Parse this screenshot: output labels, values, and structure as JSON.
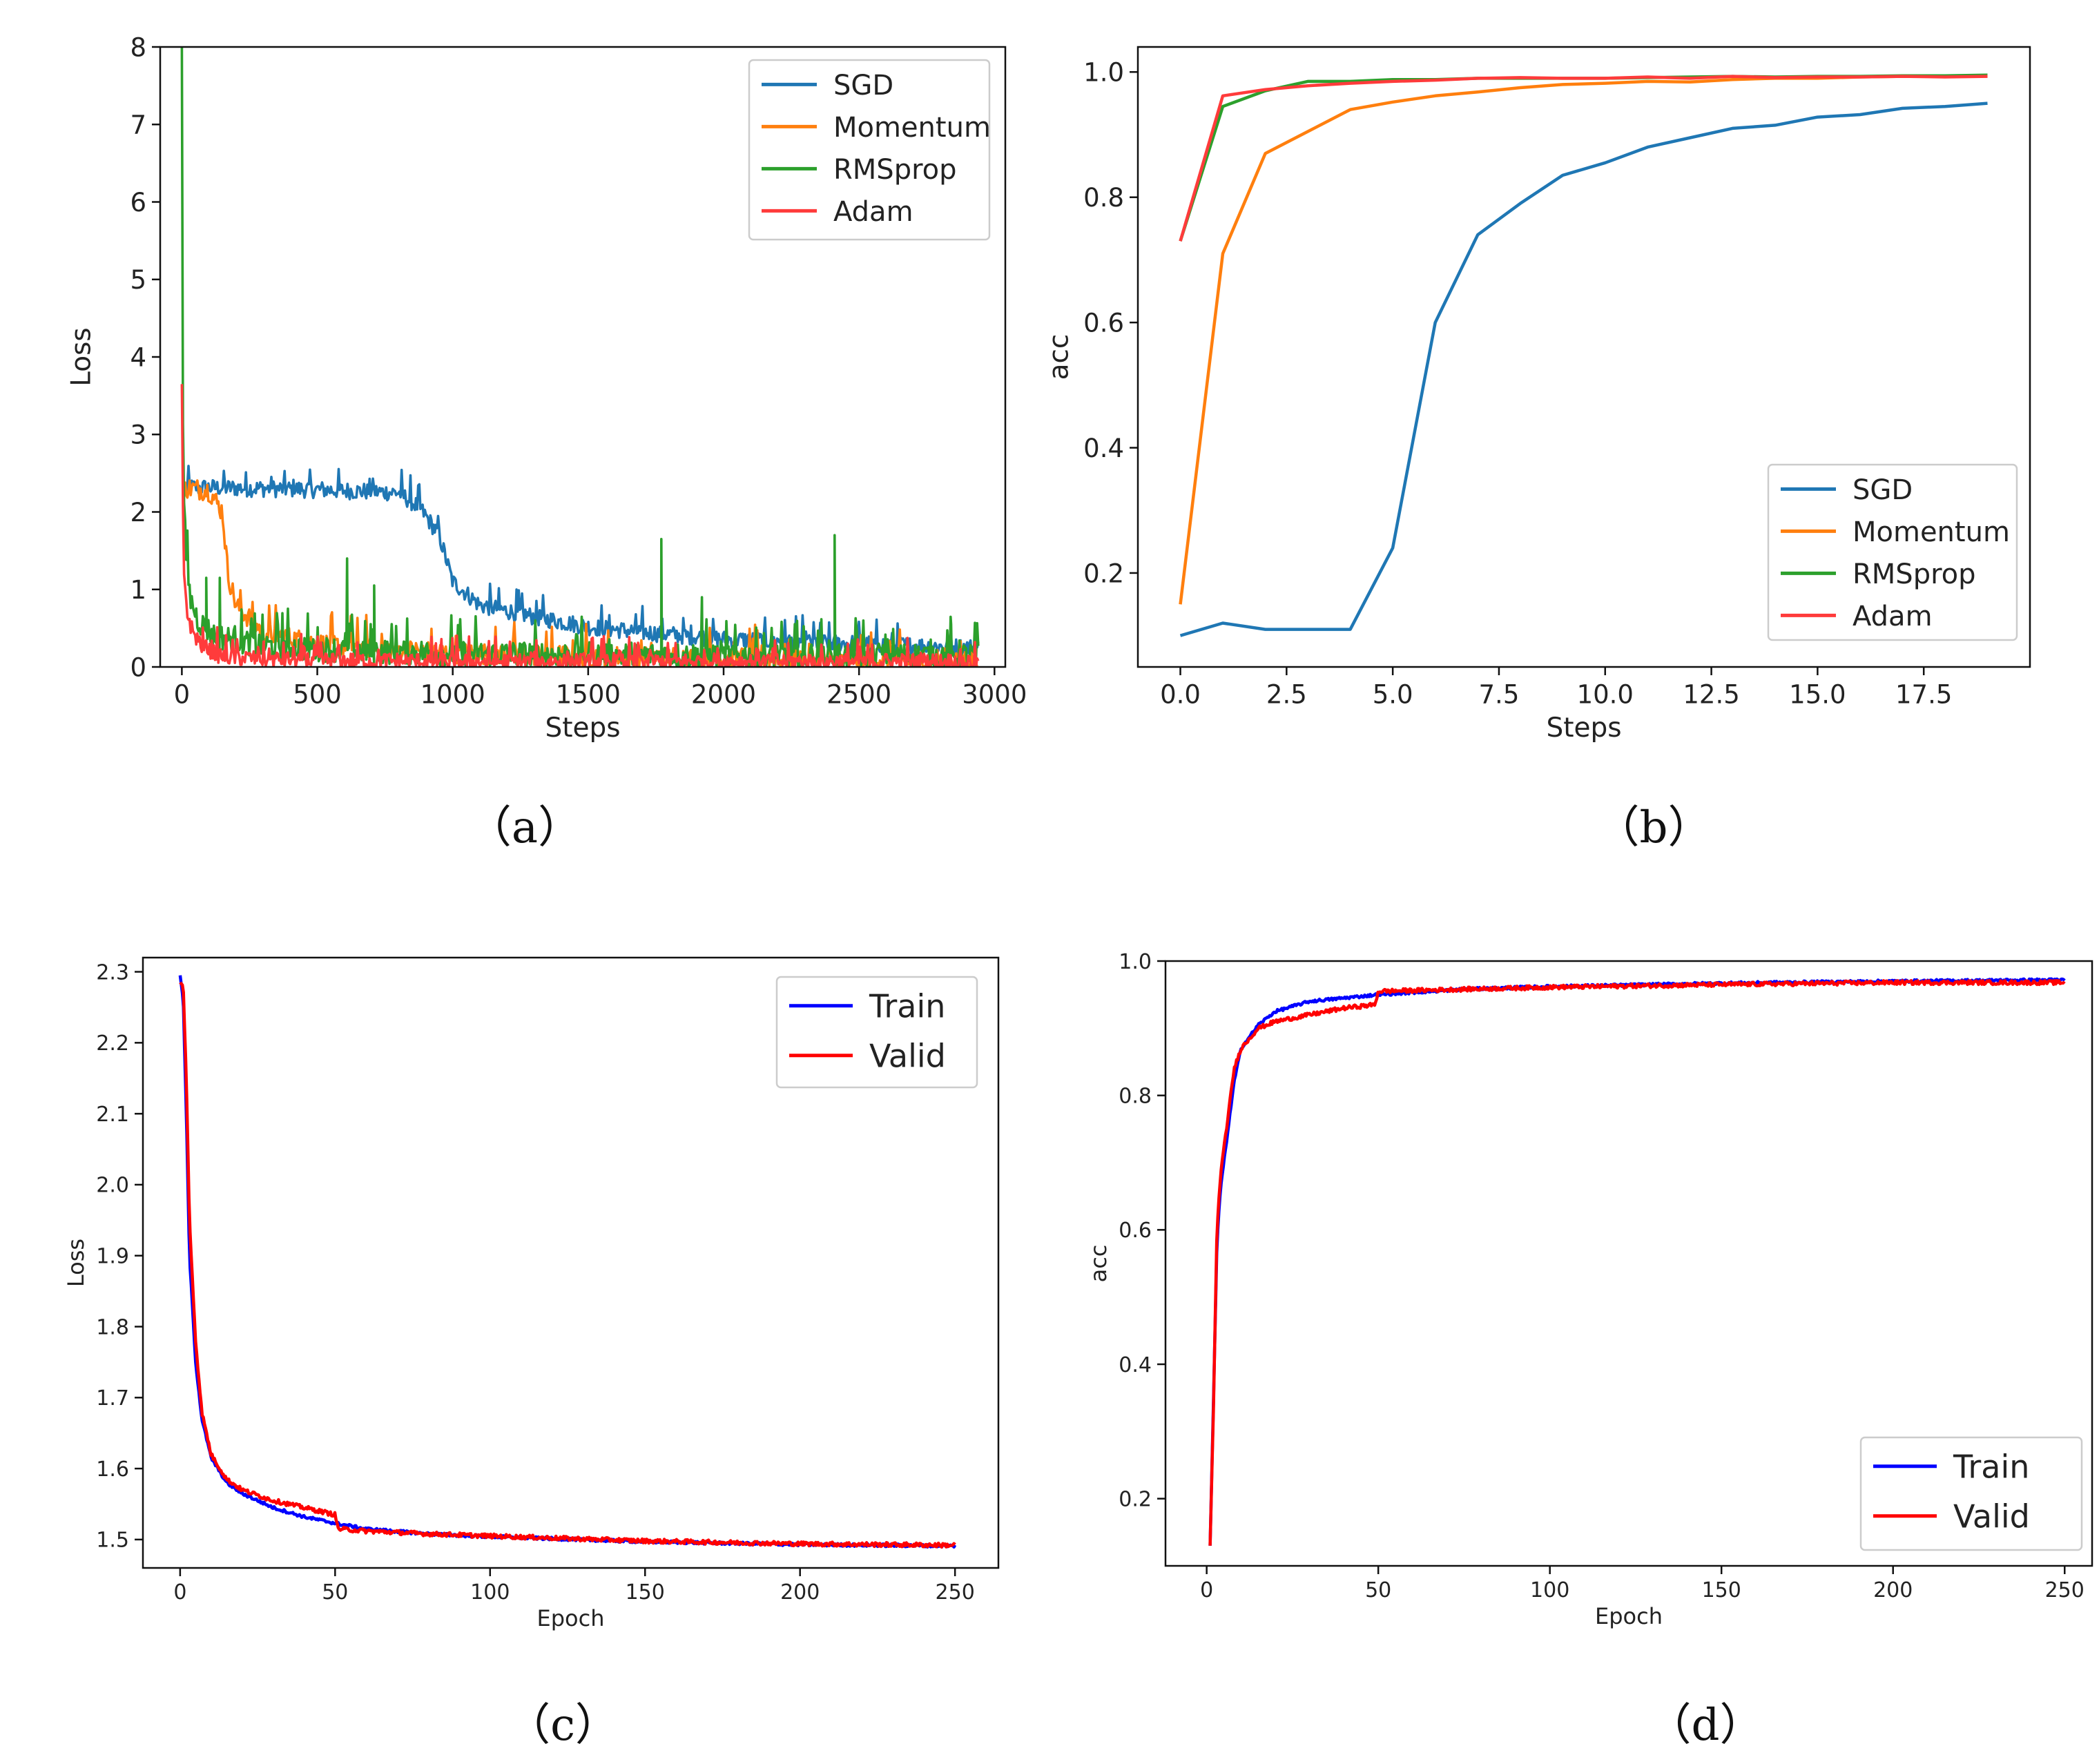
{
  "figure_captions": [
    "（a）",
    "（b）",
    "（c）",
    "（d）"
  ],
  "colors": {
    "sgd": "#1f77b4",
    "momentum": "#ff7f0e",
    "rmsprop": "#2ca02c",
    "adam": "#ff3b3b",
    "train": "#0000ff",
    "valid": "#ff0000"
  },
  "chart_data": [
    {
      "id": "a",
      "type": "line",
      "xlabel": "Steps",
      "ylabel": "Loss",
      "xlim": [
        -80,
        3040
      ],
      "ylim": [
        0,
        8
      ],
      "xticks": [
        0,
        500,
        1000,
        1500,
        2000,
        2500,
        3000
      ],
      "xtick_labels": [
        "0",
        "500",
        "1000",
        "1500",
        "2000",
        "2500",
        "3000"
      ],
      "yticks": [
        0,
        1,
        2,
        3,
        4,
        5,
        6,
        7,
        8
      ],
      "ytick_labels": [
        "0",
        "1",
        "2",
        "3",
        "4",
        "5",
        "6",
        "7",
        "8"
      ],
      "legend_position": "top-right",
      "series": [
        {
          "name": "SGD",
          "color": "#1f77b4",
          "x": [
            0,
            200,
            500,
            800,
            880,
            950,
            1000,
            1100,
            1300,
            1500,
            1700,
            2000,
            2500,
            2940
          ],
          "y": [
            2.32,
            2.31,
            2.29,
            2.25,
            2.05,
            1.7,
            1.1,
            0.8,
            0.65,
            0.52,
            0.45,
            0.36,
            0.3,
            0.25
          ],
          "noise": 0.08
        },
        {
          "name": "Momentum",
          "color": "#ff7f0e",
          "x": [
            0,
            100,
            150,
            170,
            200,
            300,
            500,
            800,
            1000,
            1500,
            2000,
            2500,
            2940
          ],
          "y": [
            2.32,
            2.28,
            2.0,
            1.2,
            0.8,
            0.45,
            0.3,
            0.22,
            0.18,
            0.14,
            0.12,
            0.1,
            0.1
          ],
          "noise": 0.1
        },
        {
          "name": "RMSprop",
          "color": "#2ca02c",
          "x": [
            0,
            3,
            6,
            15,
            30,
            60,
            120,
            300,
            600,
            1000,
            1500,
            2000,
            2500,
            2940
          ],
          "y": [
            8.0,
            3.6,
            2.3,
            1.5,
            0.9,
            0.6,
            0.4,
            0.28,
            0.22,
            0.18,
            0.16,
            0.15,
            0.15,
            0.15
          ],
          "noise": 0.12,
          "spikes": [
            [
              90,
              1.15
            ],
            [
              140,
              1.15
            ],
            [
              610,
              1.4
            ],
            [
              710,
              1.05
            ],
            [
              1770,
              1.65
            ],
            [
              1920,
              0.9
            ],
            [
              2410,
              1.7
            ],
            [
              2840,
              0.55
            ]
          ]
        },
        {
          "name": "Adam",
          "color": "#ff3b3b",
          "x": [
            0,
            3,
            8,
            20,
            40,
            80,
            150,
            300,
            600,
            1000,
            1500,
            2000,
            2500,
            2940
          ],
          "y": [
            3.65,
            2.3,
            1.2,
            0.7,
            0.45,
            0.25,
            0.14,
            0.1,
            0.08,
            0.07,
            0.07,
            0.07,
            0.07,
            0.07
          ],
          "noise": 0.08
        }
      ]
    },
    {
      "id": "b",
      "type": "line",
      "xlabel": "Steps",
      "ylabel": "acc",
      "xlim": [
        -1,
        20
      ],
      "ylim": [
        0.05,
        1.04
      ],
      "xticks": [
        0,
        2.5,
        5,
        7.5,
        10,
        12.5,
        15,
        17.5
      ],
      "xtick_labels": [
        "0.0",
        "2.5",
        "5.0",
        "7.5",
        "10.0",
        "12.5",
        "15.0",
        "17.5"
      ],
      "yticks": [
        0.2,
        0.4,
        0.6,
        0.8,
        1.0
      ],
      "ytick_labels": [
        "0.2",
        "0.4",
        "0.6",
        "0.8",
        "1.0"
      ],
      "legend_position": "bottom-right",
      "series": [
        {
          "name": "SGD",
          "color": "#1f77b4",
          "x": [
            0,
            1,
            2,
            3,
            4,
            5,
            6,
            7,
            8,
            9,
            10,
            11,
            12,
            13,
            14,
            15,
            16,
            17,
            18,
            19
          ],
          "y": [
            0.1,
            0.12,
            0.11,
            0.11,
            0.11,
            0.24,
            0.6,
            0.74,
            0.79,
            0.835,
            0.855,
            0.88,
            0.895,
            0.91,
            0.915,
            0.928,
            0.932,
            0.942,
            0.945,
            0.95
          ]
        },
        {
          "name": "Momentum",
          "color": "#ff7f0e",
          "x": [
            0,
            1,
            2,
            3,
            4,
            5,
            6,
            7,
            8,
            9,
            10,
            11,
            12,
            13,
            14,
            15,
            16,
            17,
            18,
            19
          ],
          "y": [
            0.15,
            0.71,
            0.87,
            0.905,
            0.94,
            0.952,
            0.962,
            0.968,
            0.975,
            0.98,
            0.982,
            0.985,
            0.984,
            0.988,
            0.99,
            0.99,
            0.992,
            0.993,
            0.993,
            0.994
          ]
        },
        {
          "name": "RMSprop",
          "color": "#2ca02c",
          "x": [
            0,
            1,
            2,
            3,
            4,
            5,
            6,
            7,
            8,
            9,
            10,
            11,
            12,
            13,
            14,
            15,
            16,
            17,
            18,
            19
          ],
          "y": [
            0.73,
            0.945,
            0.97,
            0.985,
            0.985,
            0.988,
            0.988,
            0.99,
            0.99,
            0.99,
            0.99,
            0.991,
            0.992,
            0.993,
            0.992,
            0.993,
            0.993,
            0.994,
            0.994,
            0.995
          ]
        },
        {
          "name": "Adam",
          "color": "#ff3b3b",
          "x": [
            0,
            1,
            2,
            3,
            4,
            5,
            6,
            7,
            8,
            9,
            10,
            11,
            12,
            13,
            14,
            15,
            16,
            17,
            18,
            19
          ],
          "y": [
            0.73,
            0.962,
            0.972,
            0.978,
            0.982,
            0.985,
            0.987,
            0.99,
            0.991,
            0.99,
            0.99,
            0.992,
            0.99,
            0.993,
            0.991,
            0.992,
            0.992,
            0.993,
            0.992,
            0.993
          ]
        }
      ]
    },
    {
      "id": "c",
      "type": "line",
      "xlabel": "Epoch",
      "ylabel": "Loss",
      "xlim": [
        -12,
        264
      ],
      "ylim": [
        1.46,
        2.32
      ],
      "xticks": [
        0,
        50,
        100,
        150,
        200,
        250
      ],
      "xtick_labels": [
        "0",
        "50",
        "100",
        "150",
        "200",
        "250"
      ],
      "yticks": [
        1.5,
        1.6,
        1.7,
        1.8,
        1.9,
        2.0,
        2.1,
        2.2,
        2.3
      ],
      "ytick_labels": [
        "1.5",
        "1.6",
        "1.7",
        "1.8",
        "1.9",
        "2.0",
        "2.1",
        "2.2",
        "2.3"
      ],
      "legend_position": "top-right",
      "series": [
        {
          "name": "Train",
          "color": "#0000ff",
          "x": [
            0,
            1,
            2,
            3,
            5,
            7,
            10,
            15,
            20,
            30,
            40,
            50,
            60,
            80,
            100,
            150,
            200,
            250
          ],
          "y": [
            2.295,
            2.26,
            2.1,
            1.9,
            1.75,
            1.67,
            1.615,
            1.58,
            1.565,
            1.545,
            1.532,
            1.523,
            1.515,
            1.508,
            1.504,
            1.497,
            1.493,
            1.491
          ],
          "noise": 0.002
        },
        {
          "name": "Valid",
          "color": "#ff0000",
          "x": [
            0,
            1,
            2,
            3,
            5,
            7,
            10,
            15,
            20,
            30,
            40,
            50,
            51,
            60,
            80,
            100,
            150,
            200,
            250
          ],
          "y": [
            2.285,
            2.28,
            2.15,
            1.95,
            1.78,
            1.68,
            1.62,
            1.585,
            1.57,
            1.555,
            1.545,
            1.535,
            1.515,
            1.512,
            1.508,
            1.505,
            1.498,
            1.494,
            1.492
          ],
          "noise": 0.003
        }
      ]
    },
    {
      "id": "d",
      "type": "line",
      "xlabel": "Epoch",
      "ylabel": "acc",
      "xlim": [
        -12,
        258
      ],
      "ylim": [
        0.1,
        1.0
      ],
      "xticks": [
        0,
        50,
        100,
        150,
        200,
        250
      ],
      "xtick_labels": [
        "0",
        "50",
        "100",
        "150",
        "200",
        "250"
      ],
      "yticks": [
        0.2,
        0.4,
        0.6,
        0.8,
        1.0
      ],
      "ytick_labels": [
        "0.2",
        "0.4",
        "0.6",
        "0.8",
        "1.0"
      ],
      "legend_position": "bottom-right",
      "series": [
        {
          "name": "Train",
          "color": "#0000ff",
          "x": [
            1,
            2,
            3,
            4,
            6,
            8,
            10,
            15,
            20,
            30,
            40,
            50,
            75,
            100,
            150,
            200,
            250
          ],
          "y": [
            0.13,
            0.35,
            0.58,
            0.66,
            0.74,
            0.82,
            0.87,
            0.905,
            0.925,
            0.94,
            0.945,
            0.95,
            0.958,
            0.962,
            0.967,
            0.97,
            0.972
          ],
          "noise": 0.002
        },
        {
          "name": "Valid",
          "color": "#ff0000",
          "x": [
            1,
            2,
            3,
            4,
            6,
            8,
            10,
            15,
            20,
            30,
            40,
            49,
            50,
            75,
            100,
            150,
            200,
            250
          ],
          "y": [
            0.13,
            0.34,
            0.6,
            0.68,
            0.76,
            0.84,
            0.87,
            0.9,
            0.91,
            0.92,
            0.93,
            0.935,
            0.955,
            0.958,
            0.961,
            0.965,
            0.968,
            0.968
          ],
          "noise": 0.003
        }
      ]
    }
  ]
}
